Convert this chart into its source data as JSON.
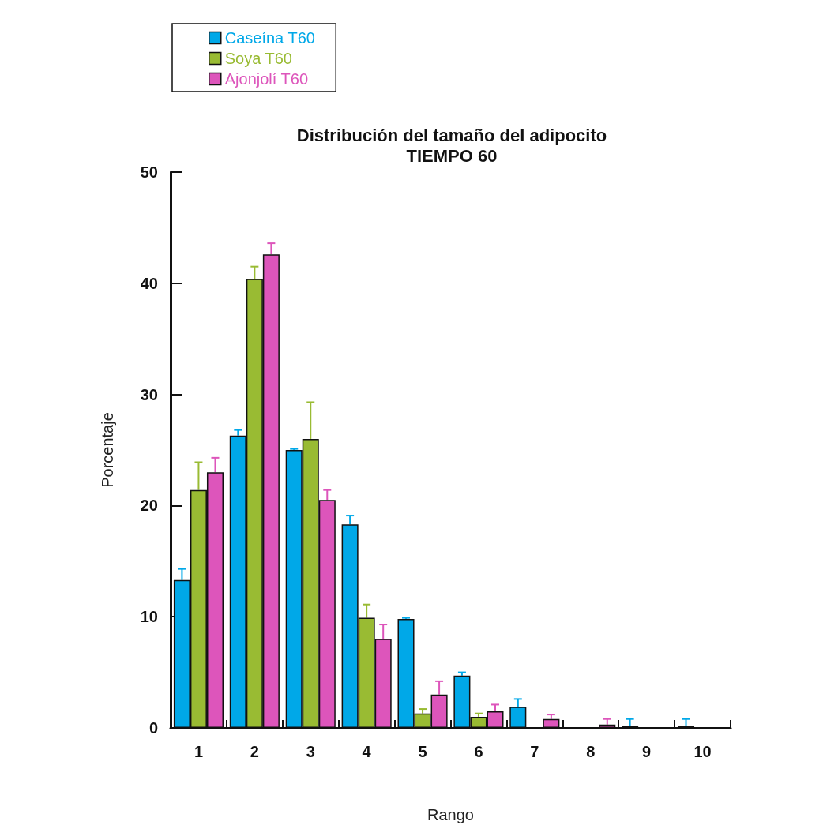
{
  "chart_data": {
    "type": "bar",
    "title": "Distribución del tamaño del adipocito",
    "subtitle": "TIEMPO 60",
    "xlabel": "Rango",
    "ylabel": "Porcentaje",
    "categories": [
      "1",
      "2",
      "3",
      "4",
      "5",
      "6",
      "7",
      "8",
      "9",
      "10"
    ],
    "series": [
      {
        "name": "Caseína T60",
        "color": "#00a8e8",
        "values": [
          13.3,
          26.3,
          25.0,
          18.3,
          9.8,
          4.7,
          1.9,
          0,
          0.2,
          0.2
        ],
        "errors": [
          [
            13.3,
            14.3
          ],
          [
            26.3,
            26.8
          ],
          [
            25.0,
            25.1
          ],
          [
            18.3,
            19.1
          ],
          [
            9.8,
            9.9
          ],
          [
            4.7,
            5.0
          ],
          [
            1.9,
            2.6
          ],
          null,
          [
            0.2,
            0.8
          ],
          [
            0.2,
            0.8
          ]
        ]
      },
      {
        "name": "Soya T60",
        "color": "#99bb33",
        "values": [
          21.4,
          40.4,
          26.0,
          9.9,
          1.3,
          1.0,
          0,
          0,
          0,
          0
        ],
        "errors": [
          [
            21.4,
            23.9
          ],
          [
            40.4,
            41.5
          ],
          [
            26.0,
            29.3
          ],
          [
            9.9,
            11.1
          ],
          [
            1.3,
            1.7
          ],
          [
            1.0,
            1.3
          ],
          null,
          null,
          null,
          null
        ]
      },
      {
        "name": "Ajonjolí T60",
        "color": "#dd55bb",
        "values": [
          23.0,
          42.6,
          20.5,
          8.0,
          3.0,
          1.5,
          0.8,
          0.3,
          0,
          0
        ],
        "errors": [
          [
            23.0,
            24.3
          ],
          [
            42.6,
            43.6
          ],
          [
            20.5,
            21.4
          ],
          [
            8.0,
            9.3
          ],
          [
            3.0,
            4.2
          ],
          [
            1.5,
            2.1
          ],
          [
            0.8,
            1.2
          ],
          [
            0.3,
            0.8
          ],
          null,
          null
        ]
      }
    ],
    "ylim": [
      0,
      50
    ],
    "yticks": [
      0,
      10,
      20,
      30,
      40,
      50
    ],
    "grid": false,
    "legend": "top left"
  }
}
